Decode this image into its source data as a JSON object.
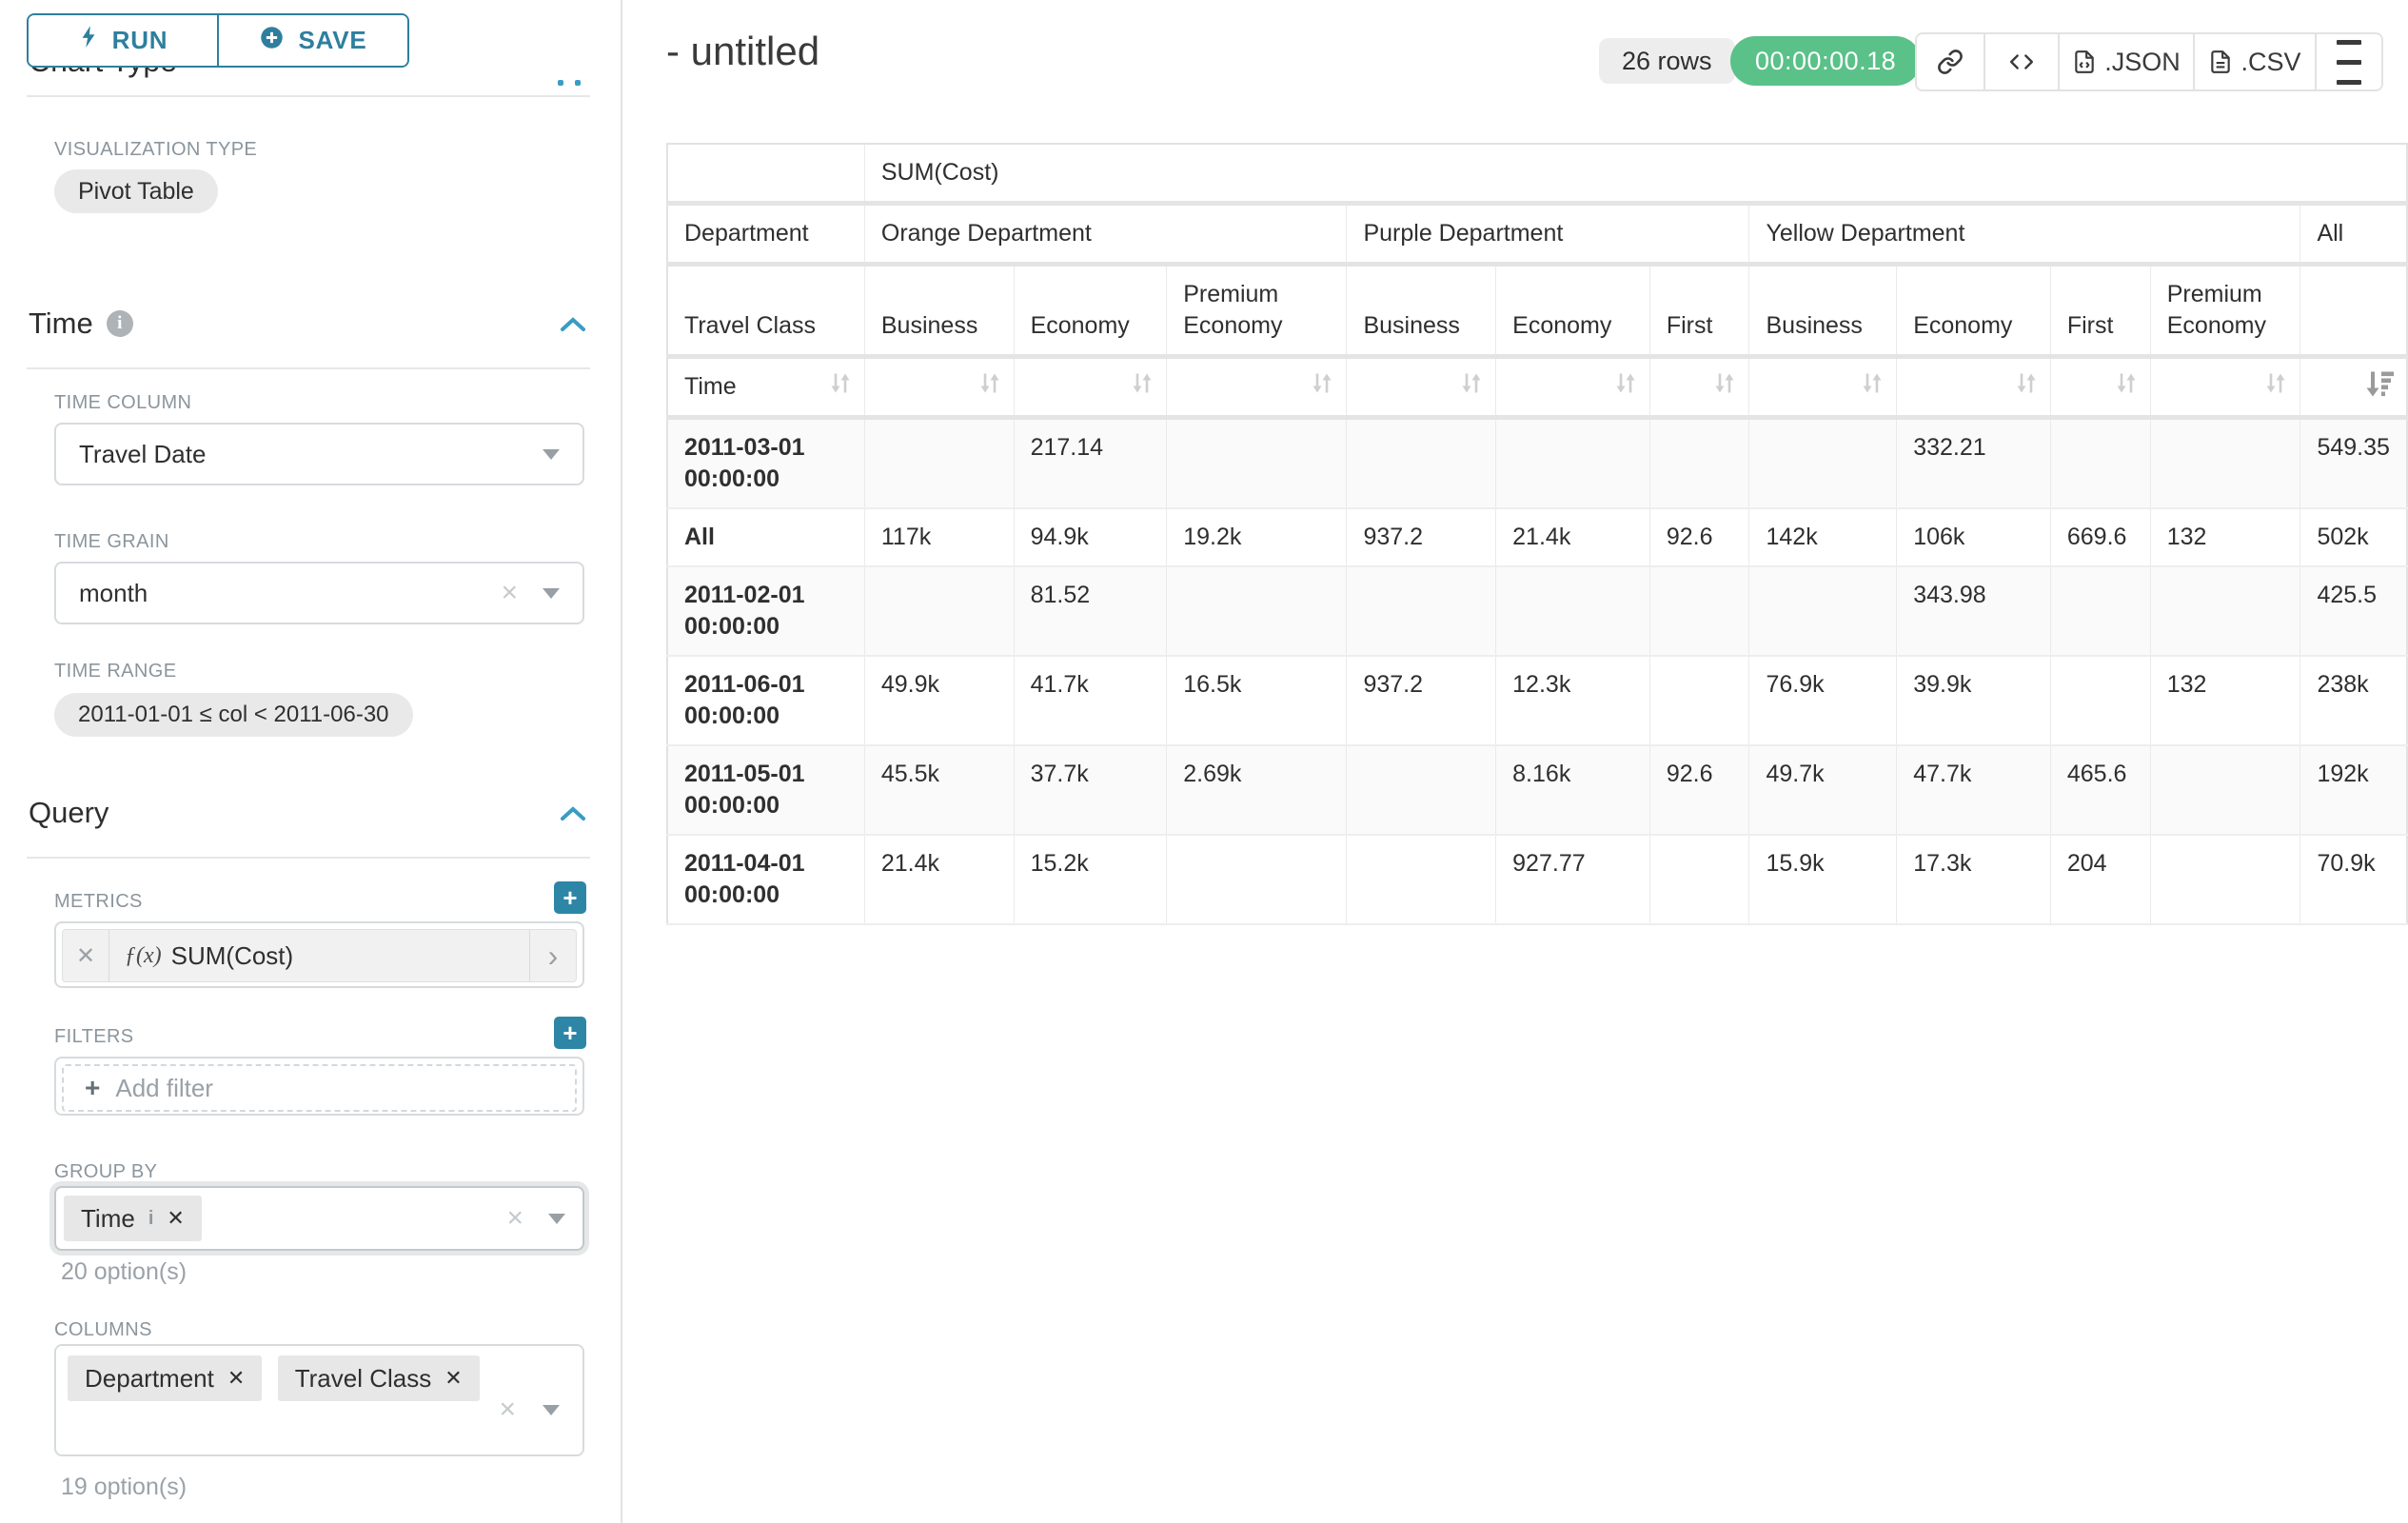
{
  "colors": {
    "accent_teal": "#2e7f9e",
    "chevron_blue": "#3a9cc4",
    "plus_button_teal": "#2e86a6",
    "success_green": "#5ac189",
    "pill_gray": "#e9e9e9",
    "border_gray": "#d7dbde"
  },
  "sidebar": {
    "run_label": "RUN",
    "save_label": "SAVE",
    "clipped_heading": "Chart Type",
    "viz_type_label": "VISUALIZATION TYPE",
    "viz_type_value": "Pivot Table",
    "time_section": {
      "title": "Time",
      "time_column_label": "TIME COLUMN",
      "time_column_value": "Travel Date",
      "time_grain_label": "TIME GRAIN",
      "time_grain_value": "month",
      "time_range_label": "TIME RANGE",
      "time_range_value": "2011-01-01 ≤ col < 2011-06-30"
    },
    "query_section": {
      "title": "Query",
      "metrics_label": "METRICS",
      "metric_fx": "ƒ(x)",
      "metric_value": "SUM(Cost)",
      "filters_label": "FILTERS",
      "add_filter_label": "Add filter",
      "group_by_label": "GROUP BY",
      "group_by_values": [
        "Time"
      ],
      "group_by_helper": "20 option(s)",
      "columns_label": "COLUMNS",
      "columns_values": [
        "Department",
        "Travel Class"
      ],
      "columns_helper": "19 option(s)"
    }
  },
  "header": {
    "title": "- untitled",
    "rows_badge": "26 rows",
    "timer_badge": "00:00:00.18",
    "json_label": ".JSON",
    "csv_label": ".CSV"
  },
  "main": {
    "table": {
      "metric_header": "SUM(Cost)",
      "corner_labels": [
        "Department",
        "Travel Class",
        "Time"
      ],
      "groups": [
        {
          "label": "Orange Department",
          "cols": [
            "Business",
            "Economy",
            "Premium Economy"
          ]
        },
        {
          "label": "Purple Department",
          "cols": [
            "Business",
            "Economy",
            "First"
          ]
        },
        {
          "label": "Yellow Department",
          "cols": [
            "Business",
            "Economy",
            "First",
            "Premium Economy"
          ]
        },
        {
          "label": "All",
          "cols": [
            ""
          ]
        }
      ],
      "sort": {
        "column": "All",
        "direction": "desc"
      },
      "rows": [
        {
          "label": "2011-03-01 00:00:00",
          "values": [
            "",
            "217.14",
            "",
            "",
            "",
            "",
            "",
            "332.21",
            "",
            "",
            "549.35"
          ]
        },
        {
          "label": "All",
          "values": [
            "117k",
            "94.9k",
            "19.2k",
            "937.2",
            "21.4k",
            "92.6",
            "142k",
            "106k",
            "669.6",
            "132",
            "502k"
          ]
        },
        {
          "label": "2011-02-01 00:00:00",
          "values": [
            "",
            "81.52",
            "",
            "",
            "",
            "",
            "",
            "343.98",
            "",
            "",
            "425.5"
          ]
        },
        {
          "label": "2011-06-01 00:00:00",
          "values": [
            "49.9k",
            "41.7k",
            "16.5k",
            "937.2",
            "12.3k",
            "",
            "76.9k",
            "39.9k",
            "",
            "132",
            "238k"
          ]
        },
        {
          "label": "2011-05-01 00:00:00",
          "values": [
            "45.5k",
            "37.7k",
            "2.69k",
            "",
            "8.16k",
            "92.6",
            "49.7k",
            "47.7k",
            "465.6",
            "",
            "192k"
          ]
        },
        {
          "label": "2011-04-01 00:00:00",
          "values": [
            "21.4k",
            "15.2k",
            "",
            "",
            "927.77",
            "",
            "15.9k",
            "17.3k",
            "204",
            "",
            "70.9k"
          ]
        }
      ]
    }
  }
}
